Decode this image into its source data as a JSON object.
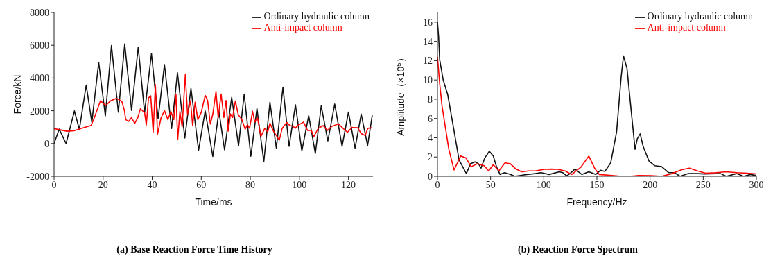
{
  "chart_data": [
    {
      "type": "line",
      "title": "(a) Base Reaction Force Time History",
      "xlabel": "Time/ms",
      "ylabel": "Force/kN",
      "xlim": [
        0,
        130
      ],
      "xticks": [
        0,
        20,
        40,
        60,
        80,
        100,
        120
      ],
      "ylim": [
        -2000,
        8000
      ],
      "yticks": [
        -2000,
        0,
        2000,
        4000,
        6000,
        8000
      ],
      "legend": "top right",
      "series": [
        {
          "name": "Ordinary hydraulic column",
          "color": "#111111",
          "x": [
            0,
            2.1,
            4.9,
            8.3,
            10.3,
            13.1,
            15.4,
            18.2,
            20.9,
            23.4,
            26.2,
            28.8,
            31.6,
            34.3,
            36.9,
            39.7,
            42.4,
            45.0,
            47.9,
            50.3,
            53.3,
            55.8,
            58.9,
            61.6,
            64.7,
            67.2,
            69.5,
            72.4,
            75.2,
            77.5,
            80.2,
            82.7,
            85.5,
            88.0,
            90.6,
            93.3,
            95.8,
            98.4,
            101.0,
            103.8,
            106.5,
            108.9,
            111.6,
            114.4,
            117.4,
            120.0,
            122.7,
            125.2,
            127.8,
            129.7
          ],
          "values": [
            0,
            880,
            0,
            1990,
            860,
            3570,
            1300,
            4950,
            1690,
            5980,
            1910,
            6080,
            2020,
            5890,
            1890,
            5500,
            1520,
            4820,
            920,
            4320,
            330,
            3370,
            -410,
            1990,
            -790,
            1970,
            -390,
            2820,
            -140,
            3020,
            -780,
            2140,
            -1110,
            2520,
            -280,
            3440,
            -170,
            2360,
            -450,
            1700,
            -610,
            2300,
            160,
            2410,
            -170,
            1920,
            -280,
            1800,
            -120,
            1720
          ]
        },
        {
          "name": "Anti-impact column",
          "color": "#ff0000",
          "x": [
            0,
            5.3,
            8.1,
            10.9,
            15.1,
            16.4,
            18.9,
            21.0,
            23.1,
            25.4,
            27.6,
            28.7,
            29.2,
            30.4,
            31.5,
            32.9,
            34.1,
            35.2,
            36.9,
            37.6,
            38.5,
            39.4,
            40.4,
            41.3,
            42.2,
            43.6,
            45.0,
            46.4,
            47.6,
            48.8,
            49.7,
            50.4,
            51.3,
            52.2,
            53.5,
            54.4,
            55.6,
            56.5,
            57.5,
            58.6,
            60.0,
            61.6,
            62.6,
            63.7,
            64.7,
            66.0,
            66.9,
            68.1,
            69.2,
            70.1,
            71.0,
            71.9,
            72.8,
            73.9,
            75.1,
            76.5,
            77.9,
            78.8,
            79.7,
            80.9,
            81.8,
            82.9,
            84.3,
            85.9,
            87.1,
            88.0,
            89.4,
            91.8,
            93.0,
            94.9,
            96.2,
            97.4,
            98.3,
            99.4,
            101.7,
            103.3,
            104.9,
            105.8,
            107.7,
            109.7,
            111.4,
            113.2,
            115.9,
            117.8,
            119.6,
            121.4,
            123.8,
            125.1,
            126.8,
            127.9,
            129.5
          ],
          "values": [
            910,
            750,
            780,
            910,
            1100,
            1570,
            2610,
            2320,
            2610,
            2760,
            2580,
            2010,
            1460,
            1350,
            1570,
            1240,
            1570,
            2120,
            1880,
            1130,
            2780,
            2910,
            690,
            3600,
            580,
            1570,
            2010,
            1460,
            1960,
            1460,
            3000,
            250,
            1960,
            1020,
            4210,
            1790,
            2610,
            1080,
            2520,
            1460,
            1900,
            2940,
            2610,
            1190,
            1790,
            3180,
            1590,
            3020,
            1590,
            2630,
            760,
            1810,
            1590,
            2600,
            1750,
            1480,
            870,
            1150,
            930,
            1970,
            1310,
            1590,
            430,
            930,
            710,
            1240,
            760,
            210,
            930,
            1280,
            1090,
            1060,
            930,
            1110,
            1310,
            800,
            800,
            400,
            930,
            1090,
            800,
            1040,
            1200,
            930,
            680,
            980,
            960,
            620,
            490,
            930,
            960
          ]
        }
      ]
    },
    {
      "type": "line",
      "title": "(b) Reaction Force Spectrum",
      "xlabel": "Frequency/Hz",
      "ylabel": "Amplitude（×10$^{5}$）",
      "xlim": [
        0,
        300
      ],
      "xticks": [
        0,
        50,
        100,
        150,
        200,
        250,
        300
      ],
      "ylim": [
        0,
        17
      ],
      "yticks": [
        0,
        2,
        4,
        6,
        8,
        10,
        12,
        14,
        16
      ],
      "legend": "top right",
      "series": [
        {
          "name": "Ordinary hydraulic column",
          "color": "#111111",
          "x": [
            0,
            1.1,
            2.1,
            5.4,
            9.6,
            15,
            20.3,
            27.2,
            31,
            35.3,
            38.5,
            41,
            44.5,
            48.8,
            52.5,
            55.7,
            58.9,
            63.2,
            68.5,
            72.8,
            81.4,
            92,
            97.4,
            105,
            114.6,
            117.8,
            121.6,
            124.6,
            129.3,
            135.9,
            142.4,
            148.9,
            153.3,
            157.6,
            163,
            168.5,
            172.8,
            175,
            178.3,
            182.6,
            185.9,
            188,
            190.7,
            193.5,
            198.9,
            204.3,
            210.9,
            217.4,
            222.8,
            228.3,
            235.9,
            244.6,
            251.1,
            262,
            266.3,
            271.7,
            281.5,
            288,
            294.6,
            300
          ],
          "values": [
            16.0,
            14.5,
            12.1,
            10.0,
            8.5,
            5.1,
            1.7,
            0.28,
            1.3,
            1.5,
            1.3,
            0.85,
            1.9,
            2.6,
            2.1,
            0.94,
            0.19,
            0.38,
            0.19,
            0,
            0.15,
            0.28,
            0.38,
            0.19,
            0.47,
            0.38,
            0.04,
            0.28,
            0.75,
            0.19,
            0.47,
            0.19,
            0.62,
            0.51,
            1.4,
            4.6,
            10.3,
            12.5,
            11.2,
            6.4,
            2.8,
            3.9,
            4.4,
            3.1,
            1.6,
            1.1,
            1.0,
            0.38,
            0.38,
            0,
            0.28,
            0.28,
            0.24,
            0.28,
            0.28,
            0,
            0.28,
            0,
            0.19,
            0.06
          ]
        },
        {
          "name": "Anti-impact column",
          "color": "#ff0000",
          "x": [
            0,
            2.1,
            4.3,
            10.7,
            15.6,
            21.8,
            26.8,
            31.7,
            37.5,
            43.9,
            48.2,
            52.5,
            57.8,
            63.6,
            68.5,
            73.9,
            79.2,
            85.7,
            92.1,
            100.6,
            107.1,
            113.5,
            119.9,
            126.3,
            134.9,
            142.4,
            147.8,
            152.2,
            164.1,
            172.8,
            181.5,
            189.1,
            201.1,
            210.9,
            220.7,
            229.3,
            237,
            244.6,
            252.2,
            262,
            271.7,
            281.5,
            291.3,
            300
          ],
          "values": [
            12.4,
            9.6,
            7.3,
            2.8,
            0.66,
            2.1,
            1.9,
            1.0,
            1.3,
            1.1,
            0.56,
            1.2,
            0.56,
            1.4,
            1.3,
            0.75,
            0.47,
            0.56,
            0.56,
            0.72,
            0.75,
            0.72,
            0.56,
            0.19,
            0.94,
            2.1,
            0.85,
            0.19,
            0.09,
            0,
            0,
            0.09,
            0.06,
            0,
            0.28,
            0.66,
            0.85,
            0.56,
            0.32,
            0.38,
            0.47,
            0.38,
            0.32,
            0.24
          ]
        }
      ]
    }
  ]
}
